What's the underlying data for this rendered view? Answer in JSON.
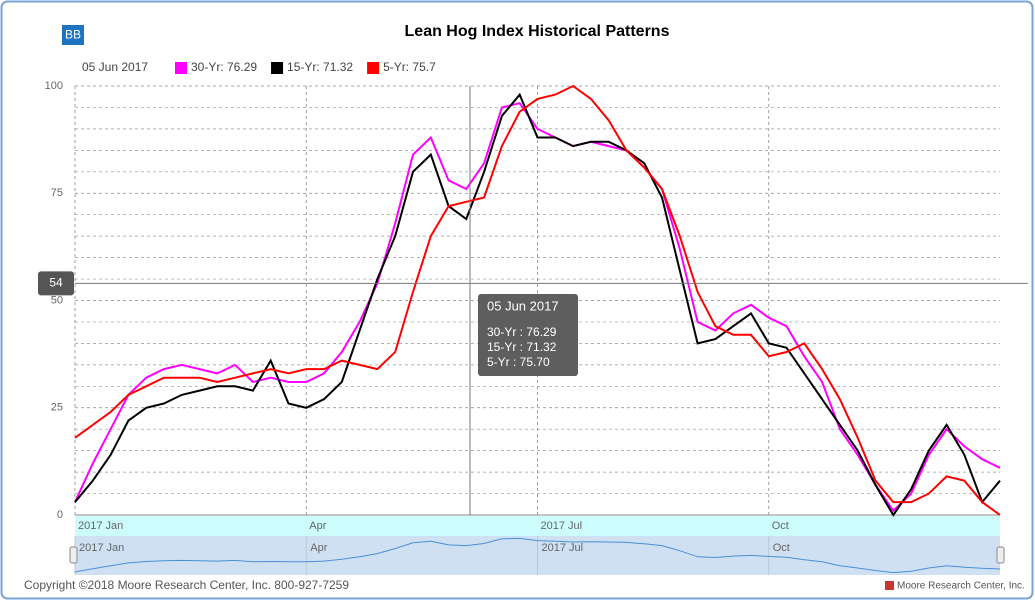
{
  "chart_data": {
    "type": "line",
    "title": "Lean Hog Index Historical Patterns",
    "badge": "BB",
    "legend_date": "05 Jun 2017",
    "legend_labels": [
      "30-Yr: 76.29",
      "15-Yr: 71.32",
      "5-Yr: 75.7"
    ],
    "crosshair_value": 54,
    "tooltip": {
      "date": "05 Jun 2017",
      "lines": [
        "30-Yr : 76.29",
        "15-Yr : 71.32",
        "5-Yr : 75.70"
      ]
    },
    "copyright": "Copyright ©2018 Moore Research Center, Inc. 800-927-7259",
    "credit": "Moore Research Center, Inc.",
    "categories": [
      "2017 Jan",
      null,
      null,
      null,
      null,
      null,
      null,
      null,
      null,
      null,
      null,
      null,
      null,
      "Apr",
      null,
      null,
      null,
      null,
      null,
      null,
      null,
      null,
      null,
      null,
      null,
      null,
      "2017 Jul",
      null,
      null,
      null,
      null,
      null,
      null,
      null,
      null,
      null,
      null,
      null,
      null,
      "Oct",
      null,
      null,
      null,
      null,
      null,
      null,
      null,
      null,
      null,
      null,
      null,
      null,
      null
    ],
    "series": [
      {
        "name": "30-Yr",
        "color": "#ff00ff",
        "values": [
          3,
          12,
          20,
          28,
          32,
          34,
          35,
          34,
          33,
          35,
          31,
          32,
          31,
          31,
          33,
          38,
          45,
          54,
          68,
          84,
          88,
          78,
          76,
          82,
          95,
          96,
          90,
          88,
          86,
          87,
          86,
          85,
          81,
          76,
          62,
          45,
          43,
          47,
          49,
          46,
          44,
          37,
          31,
          20,
          14,
          7,
          1,
          5,
          14,
          20,
          16,
          13,
          11
        ]
      },
      {
        "name": "15-Yr",
        "color": "#000000",
        "values": [
          3,
          8,
          14,
          22,
          25,
          26,
          28,
          29,
          30,
          30,
          29,
          36,
          26,
          25,
          27,
          31,
          43,
          55,
          65,
          80,
          84,
          72,
          69,
          80,
          93,
          98,
          88,
          88,
          86,
          87,
          87,
          85,
          82,
          74,
          57,
          40,
          41,
          44,
          47,
          40,
          39,
          33,
          27,
          21,
          15,
          7,
          0,
          6,
          15,
          21,
          14,
          3,
          8
        ]
      },
      {
        "name": "5-Yr",
        "color": "#ff0000",
        "values": [
          18,
          21,
          24,
          28,
          30,
          32,
          32,
          32,
          31,
          32,
          33,
          34,
          33,
          34,
          34,
          36,
          35,
          34,
          38,
          52,
          65,
          72,
          73,
          74,
          86,
          94,
          97,
          98,
          100,
          97,
          92,
          85,
          81,
          76,
          65,
          52,
          44,
          42,
          42,
          37,
          38,
          40,
          34,
          27,
          18,
          8,
          3,
          3,
          5,
          9,
          8,
          3,
          0
        ]
      }
    ],
    "ylim": [
      0,
      100
    ],
    "yticks": [
      0,
      25,
      50,
      75,
      100
    ],
    "minor_yticks": [
      5,
      10,
      15,
      20,
      30,
      35,
      40,
      45,
      55,
      60,
      65,
      70,
      80,
      85,
      90,
      95
    ],
    "grid": true
  }
}
